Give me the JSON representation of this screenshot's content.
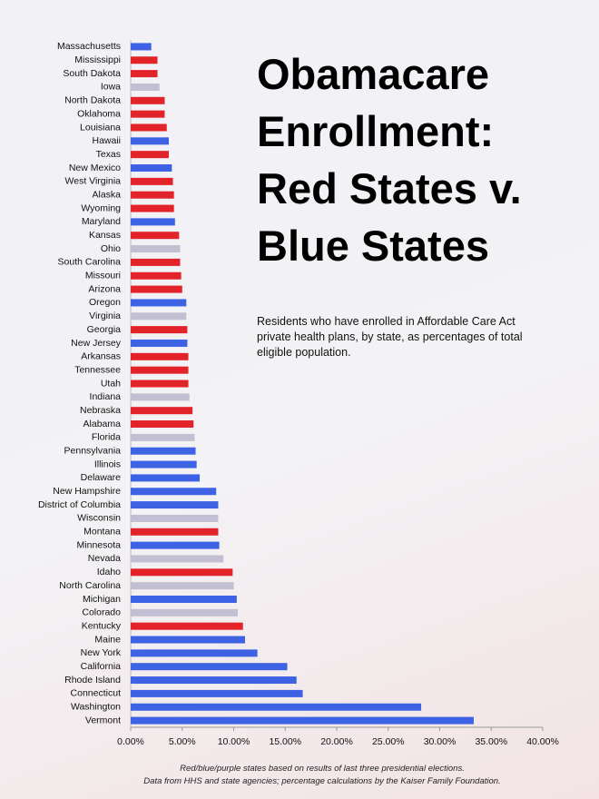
{
  "chart_data": {
    "type": "bar",
    "orientation": "horizontal",
    "title": "Obamacare Enrollment: Red States v. Blue States",
    "subtitle": "Residents who have enrolled in Affordable Care Act private health plans, by state, as percentages of total eligible population.",
    "notes": [
      "Red/blue/purple states based on results of last three presidential elections.",
      "Data from HHS and state agencies; percentage calculations by the Kaiser Family Foundation."
    ],
    "categories": [
      "Massachusetts",
      "Mississippi",
      "South Dakota",
      "Iowa",
      "North Dakota",
      "Oklahoma",
      "Louisiana",
      "Hawaii",
      "Texas",
      "New Mexico",
      "West Virginia",
      "Alaska",
      "Wyoming",
      "Maryland",
      "Kansas",
      "Ohio",
      "South Carolina",
      "Missouri",
      "Arizona",
      "Oregon",
      "Virginia",
      "Georgia",
      "New Jersey",
      "Arkansas",
      "Tennessee",
      "Utah",
      "Indiana",
      "Nebraska",
      "Alabama",
      "Florida",
      "Pennsylvania",
      "Illinois",
      "Delaware",
      "New Hampshire",
      "District of Columbia",
      "Wisconsin",
      "Montana",
      "Minnesota",
      "Nevada",
      "Idaho",
      "North Carolina",
      "Michigan",
      "Colorado",
      "Kentucky",
      "Maine",
      "New York",
      "California",
      "Rhode Island",
      "Connecticut",
      "Washington",
      "Vermont"
    ],
    "values": [
      2.0,
      2.6,
      2.6,
      2.8,
      3.3,
      3.3,
      3.5,
      3.7,
      3.7,
      4.0,
      4.1,
      4.2,
      4.2,
      4.3,
      4.7,
      4.8,
      4.8,
      4.9,
      5.0,
      5.4,
      5.4,
      5.5,
      5.5,
      5.6,
      5.6,
      5.6,
      5.7,
      6.0,
      6.1,
      6.2,
      6.3,
      6.4,
      6.7,
      8.3,
      8.5,
      8.5,
      8.5,
      8.6,
      9.0,
      9.9,
      10.0,
      10.3,
      10.4,
      10.9,
      11.1,
      12.3,
      15.2,
      16.1,
      16.7,
      28.2,
      33.3
    ],
    "colors": [
      "#3d62e4",
      "#e3232a",
      "#e3232a",
      "#c3bfd2",
      "#e3232a",
      "#e3232a",
      "#e3232a",
      "#3d62e4",
      "#e3232a",
      "#3d62e4",
      "#e3232a",
      "#e3232a",
      "#e3232a",
      "#3d62e4",
      "#e3232a",
      "#c3bfd2",
      "#e3232a",
      "#e3232a",
      "#e3232a",
      "#3d62e4",
      "#c3bfd2",
      "#e3232a",
      "#3d62e4",
      "#e3232a",
      "#e3232a",
      "#e3232a",
      "#c3bfd2",
      "#e3232a",
      "#e3232a",
      "#c3bfd2",
      "#3d62e4",
      "#3d62e4",
      "#3d62e4",
      "#3d62e4",
      "#3d62e4",
      "#c3bfd2",
      "#e3232a",
      "#3d62e4",
      "#c3bfd2",
      "#e3232a",
      "#c3bfd2",
      "#3d62e4",
      "#c3bfd2",
      "#e3232a",
      "#3d62e4",
      "#3d62e4",
      "#3d62e4",
      "#3d62e4",
      "#3d62e4",
      "#3d62e4",
      "#3d62e4"
    ],
    "xlim": [
      0,
      40
    ],
    "xticks": [
      {
        "value": 0,
        "label": "0.00%"
      },
      {
        "value": 5,
        "label": "5.00%"
      },
      {
        "value": 10,
        "label": "10.00%"
      },
      {
        "value": 15,
        "label": "15.00%"
      },
      {
        "value": 20,
        "label": "20.00%"
      },
      {
        "value": 25,
        "label": "25.00%"
      },
      {
        "value": 30,
        "label": "30.00%"
      },
      {
        "value": 35,
        "label": "35.00%"
      },
      {
        "value": 40,
        "label": "40.00%"
      }
    ],
    "grid": false
  }
}
